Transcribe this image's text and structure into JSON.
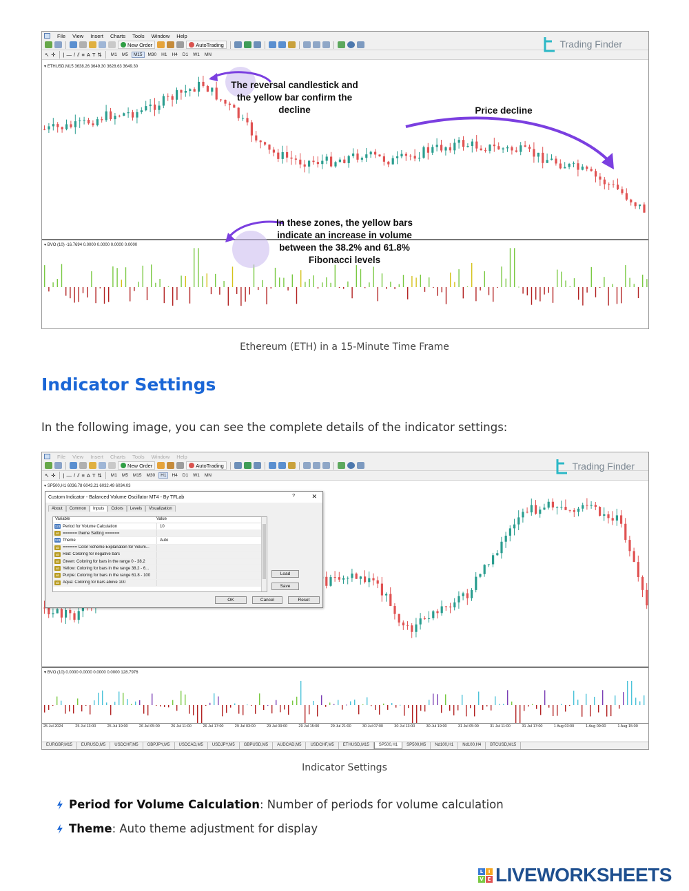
{
  "menu": {
    "items": [
      "File",
      "View",
      "Insert",
      "Charts",
      "Tools",
      "Window",
      "Help"
    ]
  },
  "toolbar": {
    "new_order": "New Order",
    "autotrading": "AutoTrading",
    "timeframes": [
      "M1",
      "M5",
      "M15",
      "M30",
      "H1",
      "H4",
      "D1",
      "W1",
      "MN"
    ]
  },
  "brand": {
    "trading_finder": "Trading Finder"
  },
  "figure1": {
    "ohlc": "ETHUSD,M15  3638.26 3649.30 3628.63 3649.30",
    "indicator_label": "BVO (10) -16.7694 0.0000 0.0000 0.0000 0.0000",
    "annotation_reversal": "The reversal candlestick and the yellow bar confirm the decline",
    "annotation_price": "Price decline",
    "annotation_zones": "In these zones, the yellow bars indicate an increase in volume between the 38.2% and 61.8% Fibonacci levels",
    "caption": "Ethereum (ETH) in a 15-Minute Time Frame"
  },
  "section": {
    "heading": "Indicator Settings",
    "intro": "In the following image, you can see the complete details of the indicator settings:"
  },
  "figure2": {
    "ohlc": "SP500,H1  6036.78 6043.21 6032.49 6034.03",
    "indicator_label": "BVO (10) 0.0000 0.0000 0.0000 0.0000 128.7976",
    "dialog": {
      "title": "Custom Indicator - Balanced Volume Oscillator MT4 - By TFLab",
      "help": "?",
      "close": "✕",
      "tabs": [
        "About",
        "Common",
        "Inputs",
        "Colors",
        "Levels",
        "Visualization"
      ],
      "active_tab": "Inputs",
      "col_variable": "Variable",
      "col_value": "Value",
      "rows": [
        {
          "type": "int",
          "tag": "123",
          "variable": "Period for Volume Calculation",
          "value": "10"
        },
        {
          "type": "str",
          "tag": "ab",
          "variable": "====== theme Setting ======",
          "value": ""
        },
        {
          "type": "int",
          "tag": "123",
          "variable": "Theme",
          "value": "Auto"
        },
        {
          "type": "str",
          "tag": "ab",
          "variable": "====== Color Scheme Explanation for Volum...",
          "value": ""
        },
        {
          "type": "str",
          "tag": "ab",
          "variable": "Red: Coloring for negative bars",
          "value": ""
        },
        {
          "type": "str",
          "tag": "ab",
          "variable": "Green: Coloring for bars in the range 0 - 38.2",
          "value": ""
        },
        {
          "type": "str",
          "tag": "ab",
          "variable": "Yellow: Coloring for bars in the range 38.2 - 6...",
          "value": ""
        },
        {
          "type": "str",
          "tag": "ab",
          "variable": "Purple: Coloring for bars in the range 61.8 - 100",
          "value": ""
        },
        {
          "type": "str",
          "tag": "ab",
          "variable": "Aqua: Coloring for bars above 100",
          "value": ""
        }
      ],
      "load": "Load",
      "save": "Save",
      "ok": "OK",
      "cancel": "Cancel",
      "reset": "Reset"
    },
    "time_labels": [
      "25 Jul 2024",
      "25 Jul 13:00",
      "25 Jul 19:00",
      "26 Jul 05:00",
      "26 Jul 11:00",
      "26 Jul 17:00",
      "29 Jul 03:00",
      "29 Jul 09:00",
      "29 Jul 15:00",
      "29 Jul 21:00",
      "30 Jul 07:00",
      "30 Jul 13:00",
      "30 Jul 19:00",
      "31 Jul 05:00",
      "31 Jul 11:00",
      "31 Jul 17:00",
      "1 Aug 03:00",
      "1 Aug 09:00",
      "1 Aug 15:00"
    ],
    "symbol_tabs": [
      "EURGBP,M15",
      "EURUSD,M5",
      "USDCHF,M5",
      "GBPJPY,M5",
      "USDCAD,M5",
      "USDJPY,M5",
      "GBPUSD,M5",
      "AUDCAD,M5",
      "USDCHF,M5",
      "ETHUSD,M15",
      "SP500,H1",
      "SP500,M5",
      "Nd100,H1",
      "Nd100,H4",
      "BTCUSD,M15"
    ],
    "active_symbol": "SP500,H1",
    "caption": "Indicator Settings"
  },
  "bullets": [
    {
      "term": "Period for Volume Calculation",
      "desc": ": Number of periods for volume calculation"
    },
    {
      "term": "Theme",
      "desc": ": Auto theme adjustment for display"
    }
  ],
  "footer": {
    "logo_text": "LIVEWORKSHEETS",
    "logo_blocks": [
      "L",
      "I",
      "V",
      "E"
    ]
  },
  "colors": {
    "bull": "#2a9d8f",
    "bear": "#e05252",
    "vol_red": "#b22222",
    "vol_green": "#7ac943",
    "vol_yellow": "#d4c21a",
    "vol_purple": "#7b3fb5",
    "vol_aqua": "#4cc3d9",
    "heading": "#1a66d6",
    "annotation_arrow": "#7b3fe0"
  }
}
